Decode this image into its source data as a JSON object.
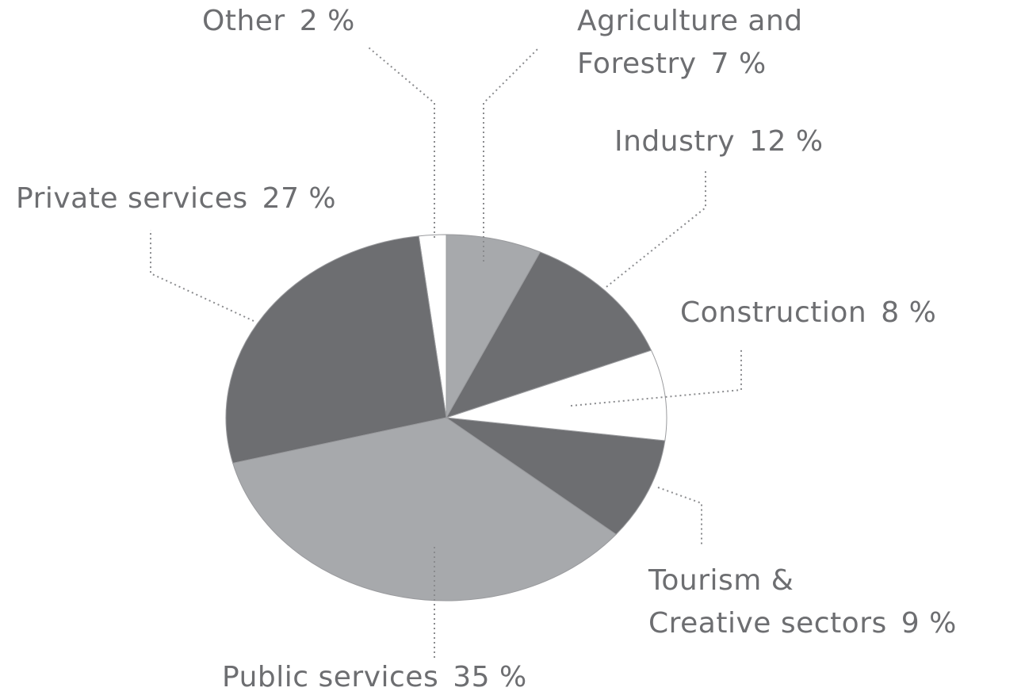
{
  "chart_data": {
    "type": "pie",
    "categories": [
      "Agriculture and\nForestry",
      "Industry",
      "Construction",
      "Tourism &\nCreative sectors",
      "Public services",
      "Private services",
      "Other"
    ],
    "values": [
      7,
      12,
      8,
      9,
      35,
      27,
      2
    ],
    "value_labels": [
      "7 %",
      "12 %",
      "8 %",
      "9 %",
      "35 %",
      "27 %",
      "2 %"
    ],
    "colors": [
      "#a7a9ac",
      "#6d6e71",
      "#ffffff",
      "#6d6e71",
      "#a7a9ac",
      "#6d6e71",
      "#ffffff"
    ]
  }
}
